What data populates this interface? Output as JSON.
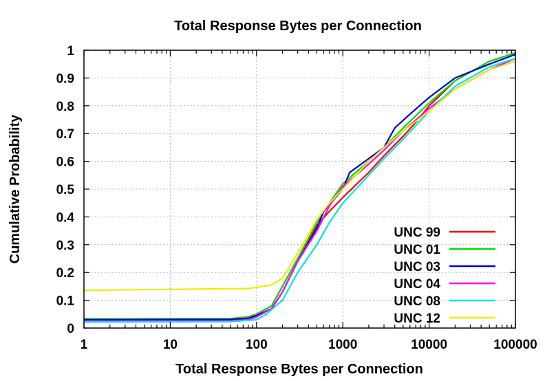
{
  "chart_data": {
    "type": "line",
    "title": "Total Response Bytes per Connection",
    "xlabel": "Total Response Bytes per Connection",
    "ylabel": "Cumulative Probability",
    "x_scale": "log",
    "xlim": [
      1,
      100000
    ],
    "ylim": [
      0,
      1
    ],
    "x_ticks": [
      1,
      10,
      100,
      1000,
      10000,
      100000
    ],
    "x_tick_labels": [
      "1",
      "10",
      "100",
      "1000",
      "10000",
      "100000"
    ],
    "y_ticks": [
      0,
      0.1,
      0.2,
      0.3,
      0.4,
      0.5,
      0.6,
      0.7,
      0.8,
      0.9,
      1
    ],
    "y_tick_labels": [
      "0",
      "0.1",
      "0.2",
      "0.3",
      "0.4",
      "0.5",
      "0.6",
      "0.7",
      "0.8",
      "0.9",
      "1"
    ],
    "grid": true,
    "legend_position": "bottom-right",
    "series": [
      {
        "name": "UNC 99",
        "color": "#ff0000",
        "points": [
          [
            1,
            0.033
          ],
          [
            50,
            0.034
          ],
          [
            80,
            0.04
          ],
          [
            100,
            0.05
          ],
          [
            150,
            0.08
          ],
          [
            200,
            0.15
          ],
          [
            300,
            0.25
          ],
          [
            500,
            0.37
          ],
          [
            700,
            0.42
          ],
          [
            1000,
            0.47
          ],
          [
            2000,
            0.56
          ],
          [
            3000,
            0.62
          ],
          [
            5000,
            0.69
          ],
          [
            7000,
            0.74
          ],
          [
            10000,
            0.8
          ],
          [
            20000,
            0.89
          ],
          [
            50000,
            0.96
          ],
          [
            100000,
            0.99
          ]
        ]
      },
      {
        "name": "UNC 01",
        "color": "#00dd00",
        "points": [
          [
            1,
            0.033
          ],
          [
            50,
            0.034
          ],
          [
            80,
            0.04
          ],
          [
            100,
            0.05
          ],
          [
            150,
            0.08
          ],
          [
            200,
            0.15
          ],
          [
            300,
            0.25
          ],
          [
            500,
            0.38
          ],
          [
            700,
            0.45
          ],
          [
            1000,
            0.52
          ],
          [
            2000,
            0.6
          ],
          [
            3000,
            0.65
          ],
          [
            5000,
            0.72
          ],
          [
            10000,
            0.81
          ],
          [
            20000,
            0.89
          ],
          [
            50000,
            0.96
          ],
          [
            100000,
            0.99
          ]
        ]
      },
      {
        "name": "UNC 03",
        "color": "#0000cc",
        "points": [
          [
            1,
            0.03
          ],
          [
            50,
            0.031
          ],
          [
            80,
            0.035
          ],
          [
            100,
            0.045
          ],
          [
            150,
            0.07
          ],
          [
            200,
            0.13
          ],
          [
            300,
            0.24
          ],
          [
            500,
            0.36
          ],
          [
            600,
            0.42
          ],
          [
            1000,
            0.5
          ],
          [
            1200,
            0.56
          ],
          [
            2000,
            0.61
          ],
          [
            3000,
            0.65
          ],
          [
            4000,
            0.72
          ],
          [
            6000,
            0.77
          ],
          [
            10000,
            0.83
          ],
          [
            20000,
            0.9
          ],
          [
            50000,
            0.95
          ],
          [
            100000,
            0.985
          ]
        ]
      },
      {
        "name": "UNC 04",
        "color": "#ff00ff",
        "points": [
          [
            1,
            0.025
          ],
          [
            50,
            0.026
          ],
          [
            80,
            0.03
          ],
          [
            100,
            0.04
          ],
          [
            150,
            0.07
          ],
          [
            200,
            0.13
          ],
          [
            300,
            0.24
          ],
          [
            500,
            0.35
          ],
          [
            700,
            0.44
          ],
          [
            1000,
            0.51
          ],
          [
            2000,
            0.59
          ],
          [
            3000,
            0.64
          ],
          [
            5000,
            0.71
          ],
          [
            10000,
            0.79
          ],
          [
            20000,
            0.86
          ],
          [
            50000,
            0.93
          ],
          [
            100000,
            0.97
          ]
        ]
      },
      {
        "name": "UNC 08",
        "color": "#00e5e5",
        "points": [
          [
            1,
            0.022
          ],
          [
            50,
            0.023
          ],
          [
            100,
            0.03
          ],
          [
            130,
            0.05
          ],
          [
            200,
            0.1
          ],
          [
            300,
            0.2
          ],
          [
            500,
            0.3
          ],
          [
            700,
            0.38
          ],
          [
            1000,
            0.45
          ],
          [
            2000,
            0.55
          ],
          [
            3000,
            0.61
          ],
          [
            5000,
            0.68
          ],
          [
            10000,
            0.78
          ],
          [
            20000,
            0.87
          ],
          [
            50000,
            0.94
          ],
          [
            100000,
            0.97
          ]
        ]
      },
      {
        "name": "UNC 12",
        "color": "#eeee00",
        "points": [
          [
            1,
            0.136
          ],
          [
            5,
            0.138
          ],
          [
            20,
            0.14
          ],
          [
            80,
            0.142
          ],
          [
            150,
            0.155
          ],
          [
            200,
            0.18
          ],
          [
            300,
            0.27
          ],
          [
            500,
            0.39
          ],
          [
            700,
            0.45
          ],
          [
            1000,
            0.5
          ],
          [
            2000,
            0.6
          ],
          [
            3000,
            0.65
          ],
          [
            5000,
            0.71
          ],
          [
            10000,
            0.78
          ],
          [
            20000,
            0.86
          ],
          [
            50000,
            0.93
          ],
          [
            100000,
            0.96
          ]
        ]
      }
    ]
  }
}
